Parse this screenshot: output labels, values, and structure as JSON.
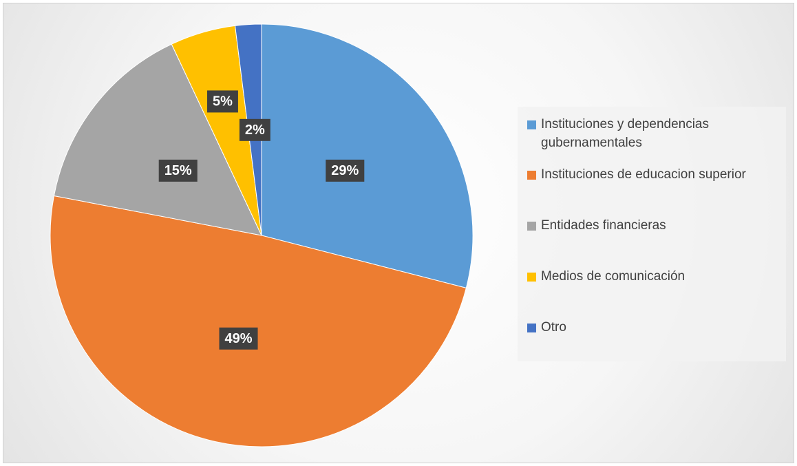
{
  "chart_data": {
    "type": "pie",
    "categories": [
      "Instituciones y dependencias gubernamentales",
      "Instituciones de educacion superior",
      "Entidades financieras",
      "Medios de comunicación",
      "Otro"
    ],
    "values": [
      29,
      49,
      15,
      5,
      2
    ],
    "value_labels": [
      "29%",
      "49%",
      "15%",
      "5%",
      "2%"
    ],
    "colors": [
      "#5b9bd5",
      "#ed7d31",
      "#a5a5a5",
      "#ffc000",
      "#4472c4"
    ],
    "legend": "right"
  }
}
